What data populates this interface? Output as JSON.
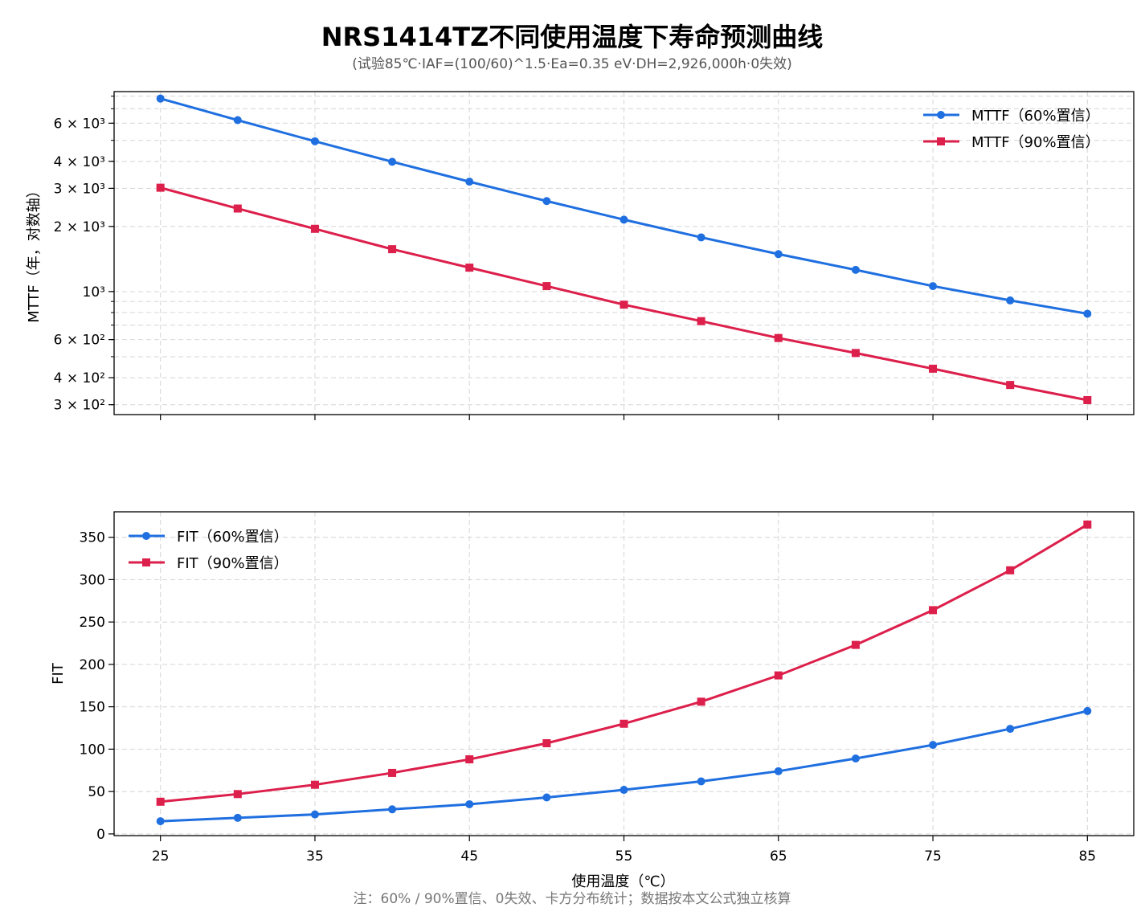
{
  "title": "NRS1414TZ不同使用温度下寿命预测曲线",
  "subtitle": "(试验85℃·IAF=(100/60)^1.5·Ea=0.35 eV·DH=2,926,000h·0失效)",
  "footnote": "注：60% / 90%置信、0失效、卡方分布统计；数据按本文公式独立核算",
  "colors": {
    "series_60": "#1f6fe0",
    "series_90": "#dc1f4b",
    "grid": "#d9d9d9"
  },
  "chart_data": [
    {
      "type": "line",
      "yscale": "log",
      "ylabel": "MTTF（年，对数轴）",
      "ylim": [
        270,
        8400
      ],
      "yticks_major": [
        {
          "value": 300,
          "label": "3 × 10²"
        },
        {
          "value": 400,
          "label": "4 × 10²"
        },
        {
          "value": 600,
          "label": "6 × 10²"
        },
        {
          "value": 1000,
          "label": "10³"
        },
        {
          "value": 2000,
          "label": "2 × 10³"
        },
        {
          "value": 3000,
          "label": "3 × 10³"
        },
        {
          "value": 4000,
          "label": "4 × 10³"
        },
        {
          "value": 6000,
          "label": "6 × 10³"
        }
      ],
      "x": [
        25,
        30,
        35,
        40,
        45,
        50,
        55,
        60,
        65,
        70,
        75,
        80,
        85
      ],
      "xlim": [
        22,
        88
      ],
      "legend": "top-right",
      "grid": true,
      "series": [
        {
          "name": "MTTF（60%置信）",
          "marker": "circle",
          "color": "#1f6fe0",
          "values": [
            7800,
            6200,
            4950,
            3980,
            3220,
            2620,
            2150,
            1780,
            1490,
            1260,
            1060,
            910,
            790
          ]
        },
        {
          "name": "MTTF（90%置信）",
          "marker": "square",
          "color": "#dc1f4b",
          "values": [
            3020,
            2420,
            1950,
            1570,
            1290,
            1060,
            870,
            730,
            610,
            520,
            440,
            370,
            315
          ]
        }
      ]
    },
    {
      "type": "line",
      "yscale": "linear",
      "ylabel": "FIT",
      "xlabel": "使用温度（℃）",
      "ylim": [
        -2,
        380
      ],
      "yticks": [
        0,
        50,
        100,
        150,
        200,
        250,
        300,
        350
      ],
      "x": [
        25,
        30,
        35,
        40,
        45,
        50,
        55,
        60,
        65,
        70,
        75,
        80,
        85
      ],
      "xticks": [
        25,
        35,
        45,
        55,
        65,
        75,
        85
      ],
      "xlim": [
        22,
        88
      ],
      "legend": "top-left",
      "grid": true,
      "series": [
        {
          "name": "FIT（60%置信）",
          "marker": "circle",
          "color": "#1f6fe0",
          "values": [
            15,
            19,
            23,
            29,
            35,
            43,
            52,
            62,
            74,
            89,
            105,
            124,
            145
          ]
        },
        {
          "name": "FIT（90%置信）",
          "marker": "square",
          "color": "#dc1f4b",
          "values": [
            38,
            47,
            58,
            72,
            88,
            107,
            130,
            156,
            187,
            223,
            264,
            311,
            365
          ]
        }
      ]
    }
  ]
}
